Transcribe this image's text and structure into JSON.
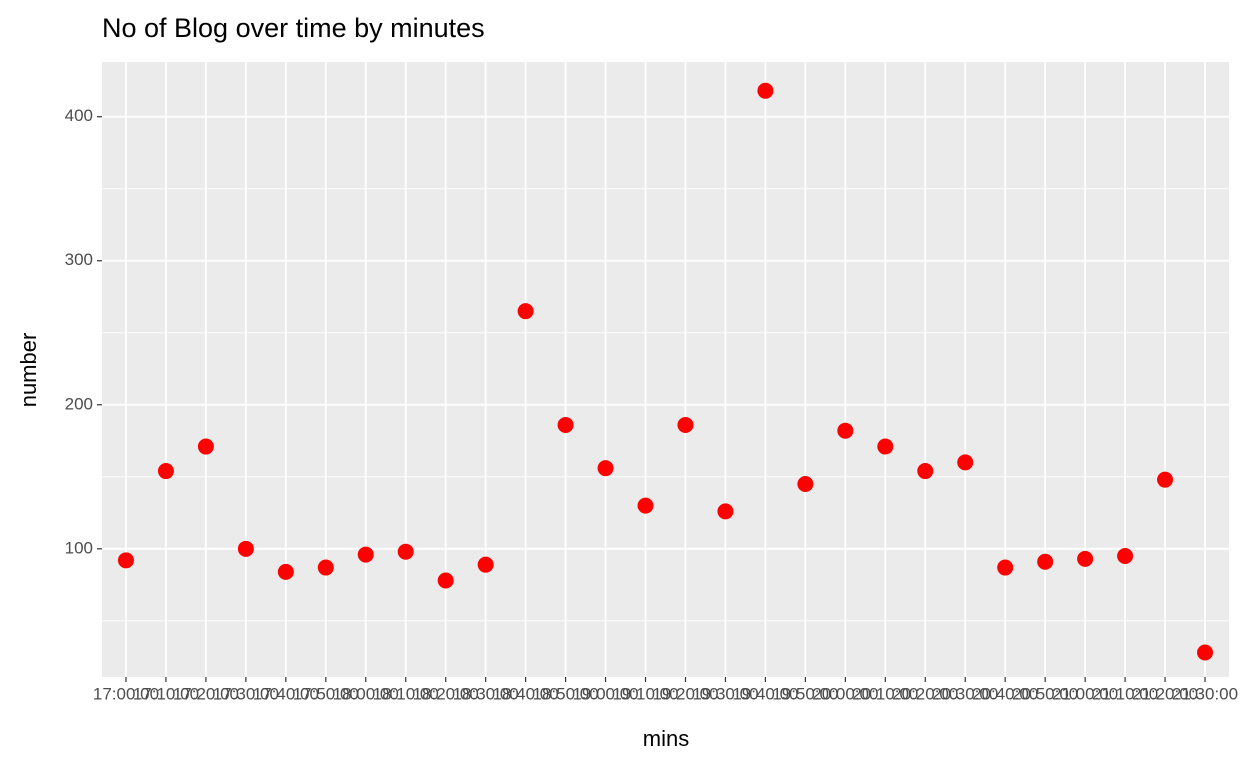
{
  "chart_data": {
    "type": "scatter",
    "title": "No of Blog over time by minutes",
    "x_label": "mins",
    "y_label": "number",
    "categories": [
      "17:00:00",
      "17:10:00",
      "17:20:00",
      "17:30:00",
      "17:40:00",
      "17:50:00",
      "18:00:00",
      "18:10:00",
      "18:20:00",
      "18:30:00",
      "18:40:00",
      "18:50:00",
      "19:00:00",
      "19:10:00",
      "19:20:00",
      "19:30:00",
      "19:40:00",
      "19:50:00",
      "20:00:00",
      "20:10:00",
      "20:20:00",
      "20:30:00",
      "20:40:00",
      "20:50:00",
      "21:00:00",
      "21:10:00",
      "21:20:00",
      "21:30:00"
    ],
    "values": [
      92,
      154,
      171,
      100,
      84,
      87,
      96,
      98,
      78,
      89,
      265,
      186,
      156,
      130,
      186,
      126,
      418,
      145,
      182,
      171,
      154,
      160,
      87,
      91,
      93,
      95,
      148,
      28
    ],
    "color": "#ff0000",
    "ylim": [
      11,
      438
    ],
    "yticks": [
      100,
      200,
      300,
      400
    ],
    "grid": true
  }
}
